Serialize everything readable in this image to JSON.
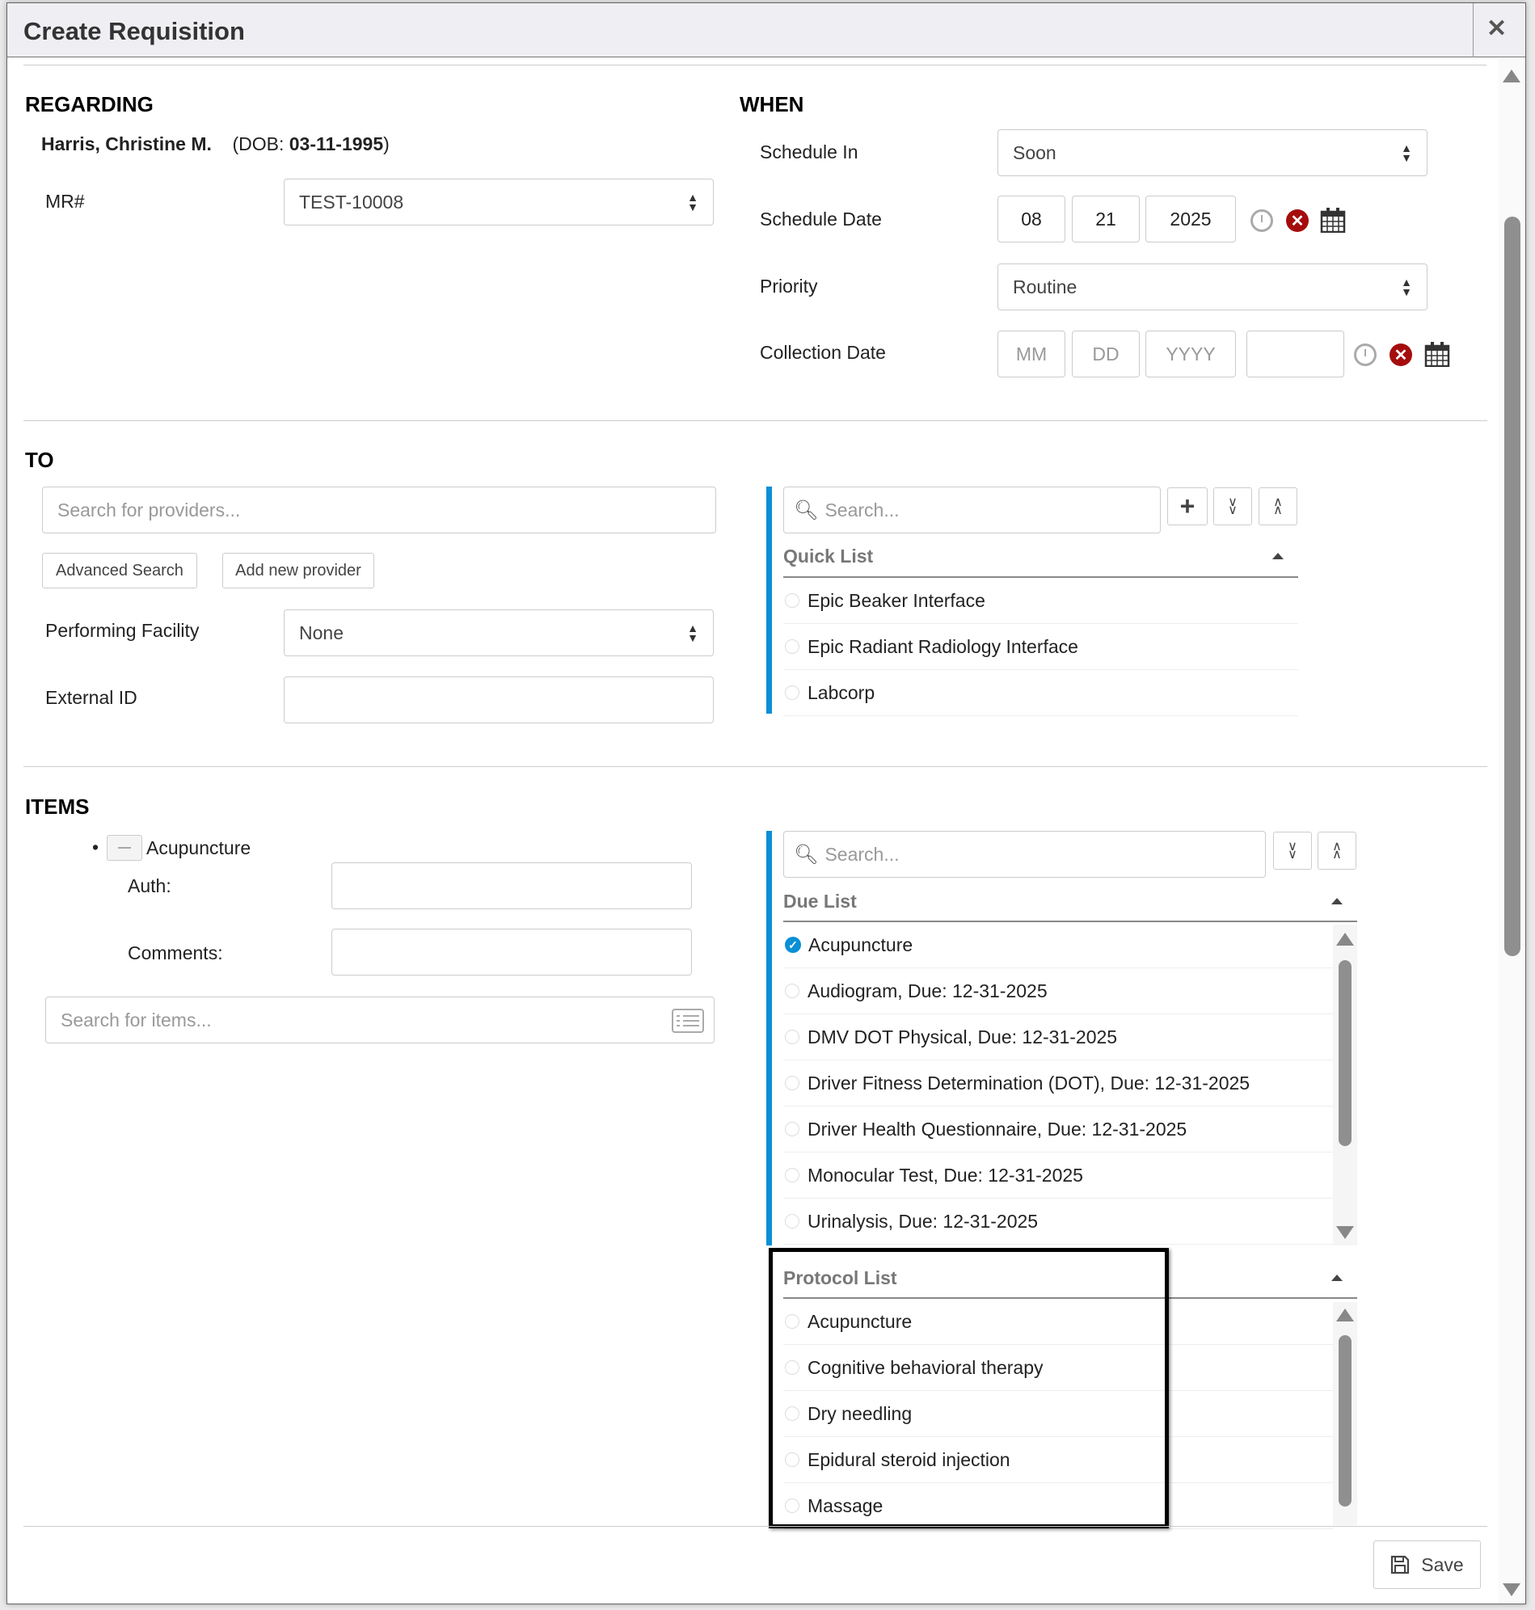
{
  "dialog": {
    "title": "Create Requisition",
    "close_icon": "close-icon"
  },
  "regarding": {
    "heading": "REGARDING",
    "patient_name": "Harris, Christine M.",
    "dob_prefix": "(DOB: ",
    "dob": "03-11-1995",
    "dob_suffix": ")",
    "mr_label": "MR#",
    "mr_value": "TEST-10008"
  },
  "when": {
    "heading": "WHEN",
    "schedule_in_label": "Schedule In",
    "schedule_in_value": "Soon",
    "schedule_date_label": "Schedule Date",
    "schedule_date": {
      "mm": "08",
      "dd": "21",
      "yyyy": "2025"
    },
    "priority_label": "Priority",
    "priority_value": "Routine",
    "collection_date_label": "Collection Date",
    "collection_date": {
      "mm_placeholder": "MM",
      "dd_placeholder": "DD",
      "yyyy_placeholder": "YYYY",
      "time": ""
    }
  },
  "to": {
    "heading": "TO",
    "provider_search_placeholder": "Search for providers...",
    "advanced_search": "Advanced Search",
    "add_new_provider": "Add new provider",
    "performing_facility_label": "Performing Facility",
    "performing_facility_value": "None",
    "external_id_label": "External ID",
    "external_id_value": "",
    "search_placeholder": "Search...",
    "quick_list": {
      "title": "Quick List",
      "items": [
        "Epic Beaker Interface",
        "Epic Radiant Radiology Interface",
        "Labcorp"
      ]
    }
  },
  "items": {
    "heading": "ITEMS",
    "selected": [
      {
        "name": "Acupuncture",
        "auth_label": "Auth:",
        "auth_value": "",
        "comments_label": "Comments:",
        "comments_value": ""
      }
    ],
    "item_search_placeholder": "Search for items...",
    "search_placeholder": "Search...",
    "due_list": {
      "title": "Due List",
      "items": [
        {
          "label": "Acupuncture",
          "checked": true
        },
        {
          "label": "Audiogram, Due: 12-31-2025",
          "checked": false
        },
        {
          "label": "DMV DOT Physical, Due: 12-31-2025",
          "checked": false
        },
        {
          "label": "Driver Fitness Determination (DOT), Due: 12-31-2025",
          "checked": false
        },
        {
          "label": "Driver Health Questionnaire, Due: 12-31-2025",
          "checked": false
        },
        {
          "label": "Monocular Test, Due: 12-31-2025",
          "checked": false
        },
        {
          "label": "Urinalysis, Due: 12-31-2025",
          "checked": false
        }
      ]
    },
    "protocol_list": {
      "title": "Protocol List",
      "items": [
        "Acupuncture",
        "Cognitive behavioral therapy",
        "Dry needling",
        "Epidural steroid injection",
        "Massage"
      ]
    }
  },
  "footer": {
    "save": "Save"
  },
  "colors": {
    "accent": "#0b8fd6",
    "clear": "#a50d0d",
    "highlight_box": "#000000"
  }
}
